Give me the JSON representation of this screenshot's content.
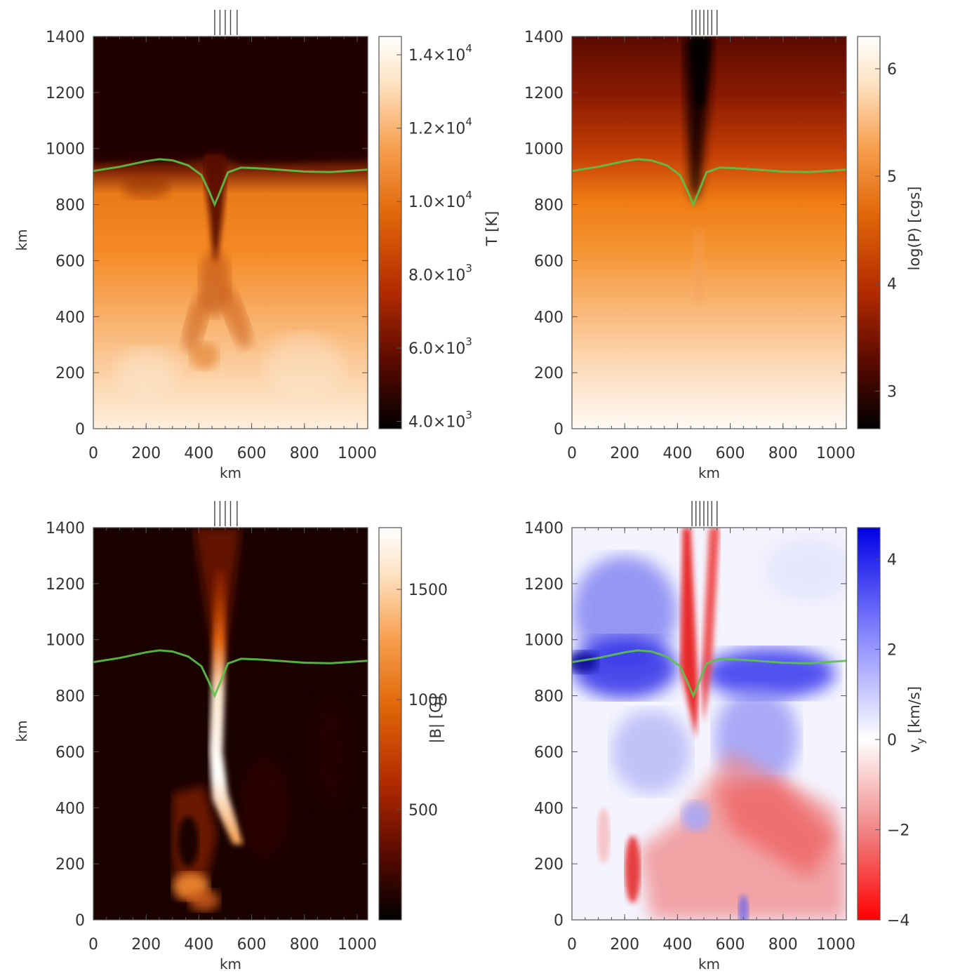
{
  "colors": {
    "contour": "#5cc24a",
    "heat_map": [
      "#000000",
      "#5a0a00",
      "#b32a00",
      "#e2680a",
      "#f7a050",
      "#fde2c2",
      "#ffffff"
    ],
    "diverging_map": [
      "#ff0000",
      "#f08080",
      "#ffffff",
      "#8a8aff",
      "#0000e6"
    ]
  },
  "chart_data": [
    {
      "type": "heatmap",
      "name": "temperature",
      "x_tick_labels": [
        "0",
        "200",
        "400",
        "600",
        "800",
        "1000"
      ],
      "y_tick_labels": [
        "0",
        "200",
        "400",
        "600",
        "800",
        "1000",
        "1200",
        "1400"
      ],
      "x_ticks": [
        0,
        200,
        400,
        600,
        800,
        1000
      ],
      "y_ticks": [
        0,
        200,
        400,
        600,
        800,
        1000,
        1200,
        1400
      ],
      "xlim": [
        0,
        1040
      ],
      "ylim": [
        0,
        1400
      ],
      "xlabel": "km",
      "ylabel": "km",
      "colorbar": {
        "label": "T [K]",
        "range": [
          3800,
          14500
        ],
        "colormap": "heat",
        "tick_values": [
          4000,
          6000,
          8000,
          10000,
          12000,
          14000
        ],
        "tick_labels": [
          "4.0×10",
          "6.0×10",
          "8.0×10",
          "1.0×10",
          "1.2×10",
          "1.4×10"
        ],
        "tick_exponents": [
          "3",
          "3",
          "3",
          "4",
          "4",
          "4"
        ]
      },
      "markers_x": [
        460,
        480,
        500,
        520,
        545
      ],
      "contour": {
        "x": [
          0,
          100,
          200,
          250,
          300,
          360,
          410,
          440,
          460,
          480,
          510,
          560,
          620,
          700,
          800,
          900,
          1040
        ],
        "y": [
          920,
          935,
          955,
          962,
          958,
          940,
          905,
          845,
          800,
          845,
          915,
          932,
          930,
          925,
          918,
          916,
          925
        ]
      }
    },
    {
      "type": "heatmap",
      "name": "pressure",
      "x_tick_labels": [
        "0",
        "200",
        "400",
        "600",
        "800",
        "1000"
      ],
      "y_tick_labels": [
        "0",
        "200",
        "400",
        "600",
        "800",
        "1000",
        "1200",
        "1400"
      ],
      "x_ticks": [
        0,
        200,
        400,
        600,
        800,
        1000
      ],
      "y_ticks": [
        0,
        200,
        400,
        600,
        800,
        1000,
        1200,
        1400
      ],
      "xlim": [
        0,
        1040
      ],
      "ylim": [
        0,
        1400
      ],
      "xlabel": "km",
      "ylabel": "",
      "colorbar": {
        "label": "log(P) [cgs]",
        "range": [
          2.65,
          6.3
        ],
        "colormap": "heat",
        "tick_values": [
          3,
          4,
          5,
          6
        ],
        "tick_labels": [
          "3",
          "4",
          "5",
          "6"
        ],
        "tick_exponents": [
          "",
          "",
          "",
          ""
        ]
      },
      "markers_x": [
        455,
        470,
        485,
        500,
        515,
        530,
        550
      ],
      "contour": {
        "x": [
          0,
          100,
          200,
          250,
          300,
          360,
          410,
          440,
          460,
          480,
          510,
          560,
          620,
          700,
          800,
          900,
          1040
        ],
        "y": [
          920,
          935,
          955,
          962,
          958,
          940,
          905,
          845,
          800,
          845,
          915,
          932,
          930,
          925,
          918,
          916,
          925
        ]
      }
    },
    {
      "type": "heatmap",
      "name": "magnetic-field",
      "x_tick_labels": [
        "0",
        "200",
        "400",
        "600",
        "800",
        "1000"
      ],
      "y_tick_labels": [
        "0",
        "200",
        "400",
        "600",
        "800",
        "1000",
        "1200",
        "1400"
      ],
      "x_ticks": [
        0,
        200,
        400,
        600,
        800,
        1000
      ],
      "y_ticks": [
        0,
        200,
        400,
        600,
        800,
        1000,
        1200,
        1400
      ],
      "xlim": [
        0,
        1040
      ],
      "ylim": [
        0,
        1400
      ],
      "xlabel": "km",
      "ylabel": "km",
      "colorbar": {
        "label": "|B| [G]",
        "range": [
          0,
          1780
        ],
        "colormap": "heat",
        "tick_values": [
          500,
          1000,
          1500
        ],
        "tick_labels": [
          "500",
          "1000",
          "1500"
        ],
        "tick_exponents": [
          "",
          "",
          ""
        ]
      },
      "markers_x": [
        460,
        480,
        500,
        520,
        545
      ],
      "contour": {
        "x": [
          0,
          100,
          200,
          250,
          300,
          360,
          410,
          440,
          460,
          480,
          510,
          560,
          620,
          700,
          800,
          900,
          1040
        ],
        "y": [
          920,
          935,
          955,
          962,
          958,
          940,
          905,
          845,
          800,
          845,
          915,
          932,
          930,
          925,
          918,
          916,
          925
        ]
      }
    },
    {
      "type": "heatmap",
      "name": "velocity",
      "x_tick_labels": [
        "0",
        "200",
        "400",
        "600",
        "800",
        "1000"
      ],
      "y_tick_labels": [
        "0",
        "200",
        "400",
        "600",
        "800",
        "1000",
        "1200",
        "1400"
      ],
      "x_ticks": [
        0,
        200,
        400,
        600,
        800,
        1000
      ],
      "y_ticks": [
        0,
        200,
        400,
        600,
        800,
        1000,
        1200,
        1400
      ],
      "xlim": [
        0,
        1040
      ],
      "ylim": [
        0,
        1400
      ],
      "xlabel": "km",
      "ylabel": "",
      "colorbar": {
        "label": "v",
        "label_sub": "y",
        "label_unit": " [km/s]",
        "range": [
          -4,
          4.7
        ],
        "colormap": "diverging",
        "tick_values": [
          -4,
          -2,
          0,
          2,
          4
        ],
        "tick_labels": [
          "−4",
          "−2",
          "0",
          "2",
          "4"
        ],
        "tick_exponents": [
          "",
          "",
          "",
          "",
          ""
        ]
      },
      "markers_x": [
        455,
        470,
        485,
        500,
        515,
        530,
        550
      ],
      "contour": {
        "x": [
          0,
          100,
          200,
          250,
          300,
          360,
          410,
          440,
          460,
          480,
          510,
          560,
          620,
          700,
          800,
          900,
          1040
        ],
        "y": [
          920,
          935,
          955,
          962,
          958,
          940,
          905,
          845,
          800,
          845,
          915,
          932,
          930,
          925,
          918,
          916,
          925
        ]
      }
    }
  ]
}
